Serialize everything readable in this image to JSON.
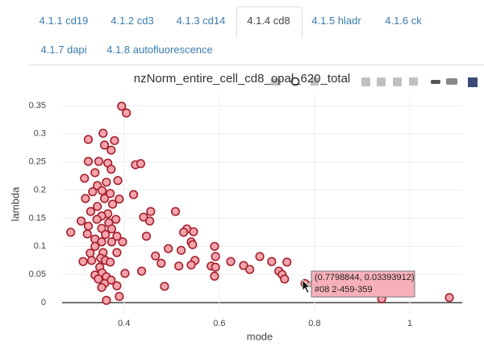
{
  "tabs": [
    "4.1.1 cd19",
    "4.1.2 cd3",
    "4.1.3 cd14",
    "4.1.4 cd8",
    "4.1.5 hladr",
    "4.1.6 ck",
    "4.1.7 dapi",
    "4.1.8 autofluorescence"
  ],
  "active_tab": "4.1.4 cd8",
  "chart_data": {
    "type": "scatter",
    "title": "nzNorm_entire_cell_cd8_opal_620_total",
    "x_label": "mode",
    "y_label": "lambda",
    "xlim": [
      0.27,
      1.11
    ],
    "ylim": [
      -0.02,
      0.37
    ],
    "xticks": [
      0.4,
      0.6,
      0.8,
      1
    ],
    "yticks": [
      0,
      0.05,
      0.1,
      0.15,
      0.2,
      0.25,
      0.3,
      0.35
    ],
    "grid": true,
    "color": "#f5a3ac",
    "edge_color": "#a3202c",
    "x": [
      0.395,
      0.405,
      0.356,
      0.38,
      0.325,
      0.359,
      0.373,
      0.347,
      0.366,
      0.325,
      0.424,
      0.435,
      0.373,
      0.339,
      0.317,
      0.387,
      0.363,
      0.344,
      0.354,
      0.334,
      0.371,
      0.42,
      0.319,
      0.359,
      0.39,
      0.376,
      0.344,
      0.33,
      0.456,
      0.508,
      0.366,
      0.353,
      0.441,
      0.343,
      0.383,
      0.454,
      0.31,
      0.368,
      0.325,
      0.353,
      0.374,
      0.532,
      0.525,
      0.288,
      0.546,
      0.323,
      0.361,
      0.385,
      0.447,
      0.339,
      0.353,
      0.374,
      0.397,
      0.541,
      0.339,
      0.544,
      0.59,
      0.493,
      0.52,
      0.385,
      0.356,
      0.329,
      0.466,
      0.592,
      0.685,
      0.351,
      0.332,
      0.361,
      0.549,
      0.314,
      0.371,
      0.478,
      0.624,
      0.71,
      0.742,
      0.541,
      0.515,
      0.583,
      0.651,
      0.349,
      0.592,
      0.664,
      0.725,
      0.437,
      0.402,
      0.354,
      0.339,
      0.363,
      0.732,
      0.59,
      0.346,
      0.373,
      0.737,
      0.359,
      0.385,
      0.353,
      0.485,
      0.7798844,
      0.39,
      0.363,
      1.083,
      0.941
    ],
    "y": [
      0.349,
      0.337,
      0.301,
      0.288,
      0.29,
      0.28,
      0.271,
      0.251,
      0.248,
      0.251,
      0.245,
      0.247,
      0.237,
      0.231,
      0.221,
      0.217,
      0.214,
      0.208,
      0.199,
      0.197,
      0.194,
      0.192,
      0.185,
      0.185,
      0.184,
      0.175,
      0.171,
      0.162,
      0.162,
      0.162,
      0.158,
      0.154,
      0.152,
      0.148,
      0.148,
      0.145,
      0.145,
      0.142,
      0.136,
      0.132,
      0.131,
      0.131,
      0.125,
      0.125,
      0.126,
      0.122,
      0.121,
      0.118,
      0.118,
      0.113,
      0.108,
      0.108,
      0.108,
      0.108,
      0.1,
      0.103,
      0.1,
      0.096,
      0.093,
      0.089,
      0.089,
      0.088,
      0.083,
      0.082,
      0.082,
      0.079,
      0.075,
      0.075,
      0.075,
      0.073,
      0.072,
      0.07,
      0.073,
      0.073,
      0.072,
      0.067,
      0.065,
      0.065,
      0.066,
      0.063,
      0.063,
      0.059,
      0.056,
      0.056,
      0.052,
      0.053,
      0.049,
      0.046,
      0.05,
      0.047,
      0.042,
      0.04,
      0.042,
      0.034,
      0.03,
      0.027,
      0.029,
      0.03393912,
      0.011,
      0.004,
      0.009,
      0.007
    ],
    "hover": {
      "label": "(0.7798844, 0.03393912)",
      "text": "#08 2-459-359"
    }
  }
}
